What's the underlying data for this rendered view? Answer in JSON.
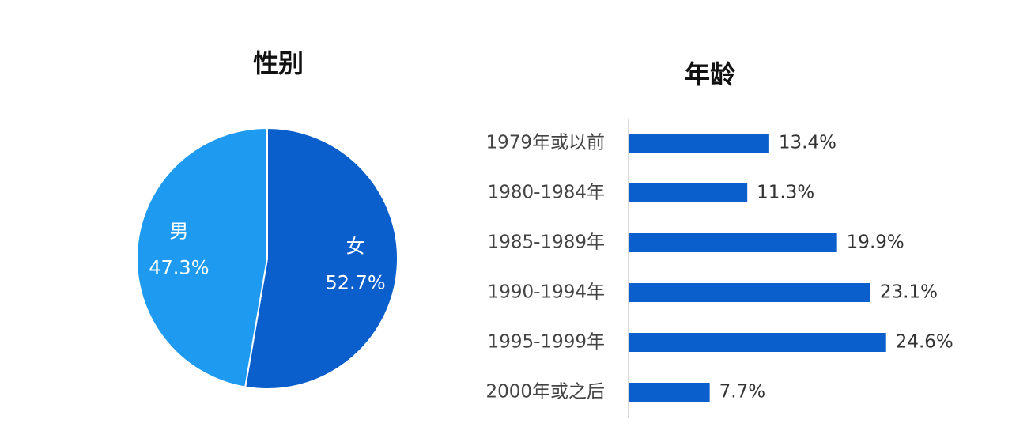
{
  "chart_data": [
    {
      "type": "pie",
      "title": "性别",
      "categories": [
        "女",
        "男"
      ],
      "values": [
        52.7,
        47.3
      ],
      "value_labels": [
        "52.7%",
        "47.3%"
      ],
      "colors": [
        "#0b5fcc",
        "#1e9bf0"
      ]
    },
    {
      "type": "hbar",
      "title": "年龄",
      "categories": [
        "1979年或以前",
        "1980-1984年",
        "1985-1989年",
        "1990-1994年",
        "1995-1999年",
        "2000年或之后"
      ],
      "values": [
        13.4,
        11.3,
        19.9,
        23.1,
        24.6,
        7.7
      ],
      "value_labels": [
        "13.4%",
        "11.3%",
        "19.9%",
        "23.1%",
        "24.6%",
        "7.7%"
      ],
      "color": "#0b5fcc"
    }
  ]
}
